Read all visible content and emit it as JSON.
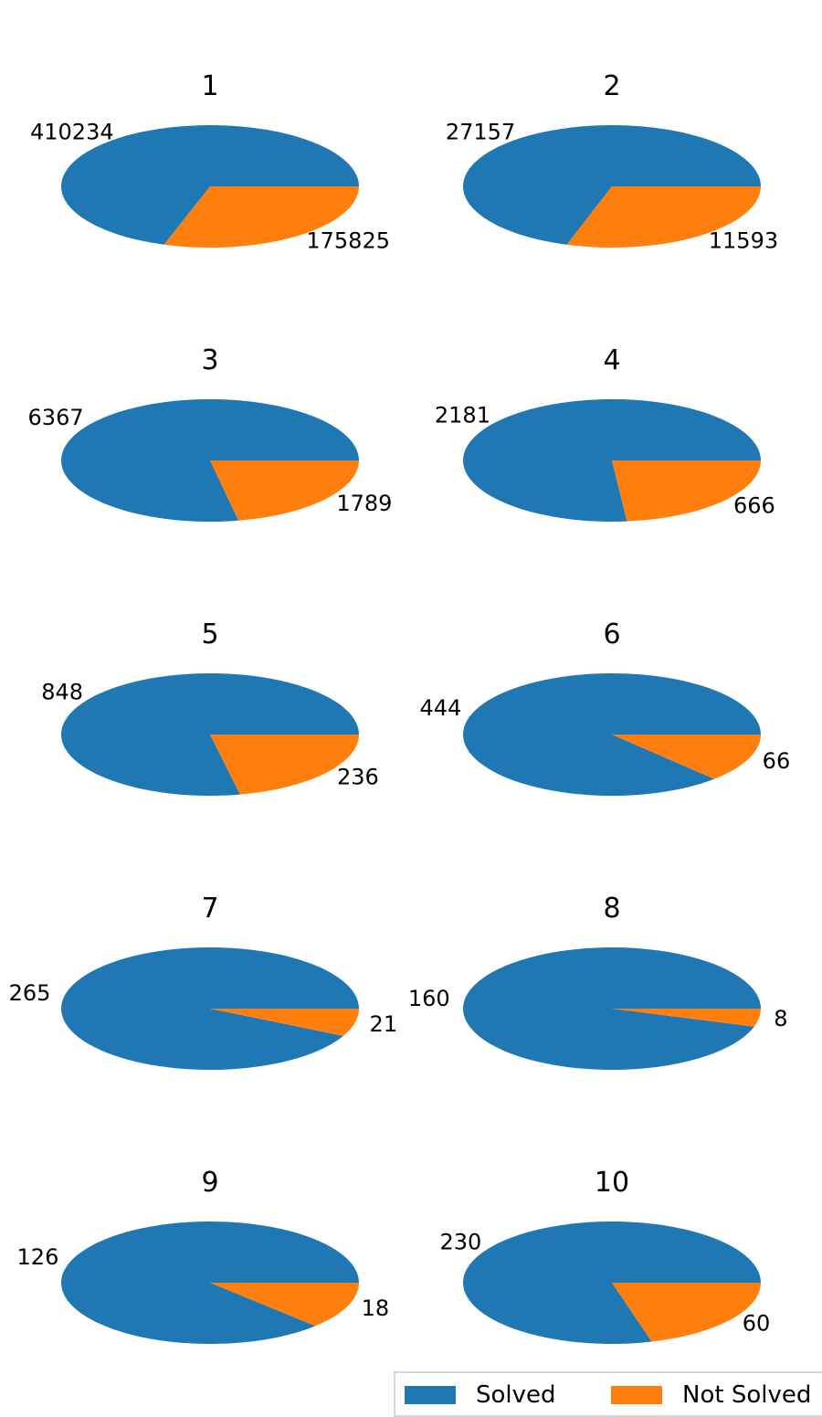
{
  "chart_data": {
    "type": "pie",
    "series_names": [
      "Solved",
      "Not Solved"
    ],
    "colors": [
      "#1f77b4",
      "#ff7f0e"
    ],
    "pies": [
      {
        "title": "1",
        "values": [
          410234,
          175825
        ]
      },
      {
        "title": "2",
        "values": [
          27157,
          11593
        ]
      },
      {
        "title": "3",
        "values": [
          6367,
          1789
        ]
      },
      {
        "title": "4",
        "values": [
          2181,
          666
        ]
      },
      {
        "title": "5",
        "values": [
          848,
          236
        ]
      },
      {
        "title": "6",
        "values": [
          444,
          66
        ]
      },
      {
        "title": "7",
        "values": [
          265,
          21
        ]
      },
      {
        "title": "8",
        "values": [
          160,
          8
        ]
      },
      {
        "title": "9",
        "values": [
          126,
          18
        ]
      },
      {
        "title": "10",
        "values": [
          230,
          60
        ]
      }
    ],
    "legend": {
      "position": "bottom-right",
      "entries": [
        "Solved",
        "Not Solved"
      ]
    }
  }
}
